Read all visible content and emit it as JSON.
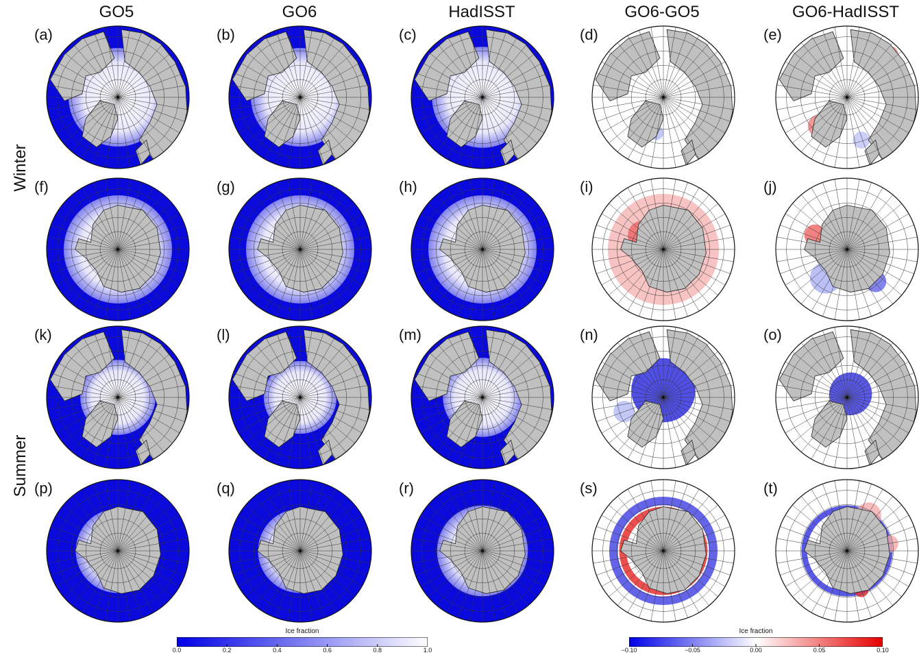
{
  "columns": [
    {
      "title": "GO5"
    },
    {
      "title": "GO6"
    },
    {
      "title": "HadISST"
    },
    {
      "title": "GO6-GO5"
    },
    {
      "title": "GO6-HadISST"
    }
  ],
  "rows": [
    {
      "season": "Winter"
    },
    {
      "season": "Summer"
    }
  ],
  "panels": [
    {
      "label": "(a)",
      "hemisphere": "north",
      "kind": "abs",
      "season": "winter",
      "ice": 0.75
    },
    {
      "label": "(b)",
      "hemisphere": "north",
      "kind": "abs",
      "season": "winter",
      "ice": 0.75
    },
    {
      "label": "(c)",
      "hemisphere": "north",
      "kind": "abs",
      "season": "winter",
      "ice": 0.78
    },
    {
      "label": "(d)",
      "hemisphere": "north",
      "kind": "diff",
      "season": "winter",
      "pattern": "mixed-small"
    },
    {
      "label": "(e)",
      "hemisphere": "north",
      "kind": "diff",
      "season": "winter",
      "pattern": "mixed-red"
    },
    {
      "label": "(f)",
      "hemisphere": "south",
      "kind": "abs",
      "season": "winter",
      "ice": 0.6
    },
    {
      "label": "(g)",
      "hemisphere": "south",
      "kind": "abs",
      "season": "winter",
      "ice": 0.6
    },
    {
      "label": "(h)",
      "hemisphere": "south",
      "kind": "abs",
      "season": "winter",
      "ice": 0.6
    },
    {
      "label": "(i)",
      "hemisphere": "south",
      "kind": "diff",
      "season": "winter",
      "pattern": "red-ring"
    },
    {
      "label": "(j)",
      "hemisphere": "south",
      "kind": "diff",
      "season": "winter",
      "pattern": "blue-ring"
    },
    {
      "label": "(k)",
      "hemisphere": "north",
      "kind": "abs",
      "season": "summer",
      "ice": 0.45
    },
    {
      "label": "(l)",
      "hemisphere": "north",
      "kind": "abs",
      "season": "summer",
      "ice": 0.42
    },
    {
      "label": "(m)",
      "hemisphere": "north",
      "kind": "abs",
      "season": "summer",
      "ice": 0.5
    },
    {
      "label": "(n)",
      "hemisphere": "north",
      "kind": "diff",
      "season": "summer",
      "pattern": "blue-center"
    },
    {
      "label": "(o)",
      "hemisphere": "north",
      "kind": "diff",
      "season": "summer",
      "pattern": "blue-center-small"
    },
    {
      "label": "(p)",
      "hemisphere": "south",
      "kind": "abs",
      "season": "summer",
      "ice": 0.12
    },
    {
      "label": "(q)",
      "hemisphere": "south",
      "kind": "abs",
      "season": "summer",
      "ice": 0.12
    },
    {
      "label": "(r)",
      "hemisphere": "south",
      "kind": "abs",
      "season": "summer",
      "ice": 0.25
    },
    {
      "label": "(s)",
      "hemisphere": "south",
      "kind": "diff",
      "season": "summer",
      "pattern": "red-blue-ring"
    },
    {
      "label": "(t)",
      "hemisphere": "south",
      "kind": "diff",
      "season": "summer",
      "pattern": "blue-ring-red"
    }
  ],
  "colorbars": [
    {
      "title": "Ice fraction",
      "ticks": [
        "0.0",
        "0.2",
        "0.4",
        "0.6",
        "0.8",
        "1.0"
      ],
      "colors": [
        "#0000e6",
        "#ffffff"
      ]
    },
    {
      "title": "Ice fraction",
      "ticks": [
        "−0.10",
        "−0.05",
        "0.00",
        "0.05",
        "0.10"
      ],
      "colors": [
        "#0000e6",
        "#ffffff",
        "#e60000"
      ]
    }
  ],
  "palette": {
    "land": "#c0c0c0",
    "ocean_abs": "#0a0adc",
    "diff_bg": "#ffffff",
    "grid": "#333333"
  }
}
